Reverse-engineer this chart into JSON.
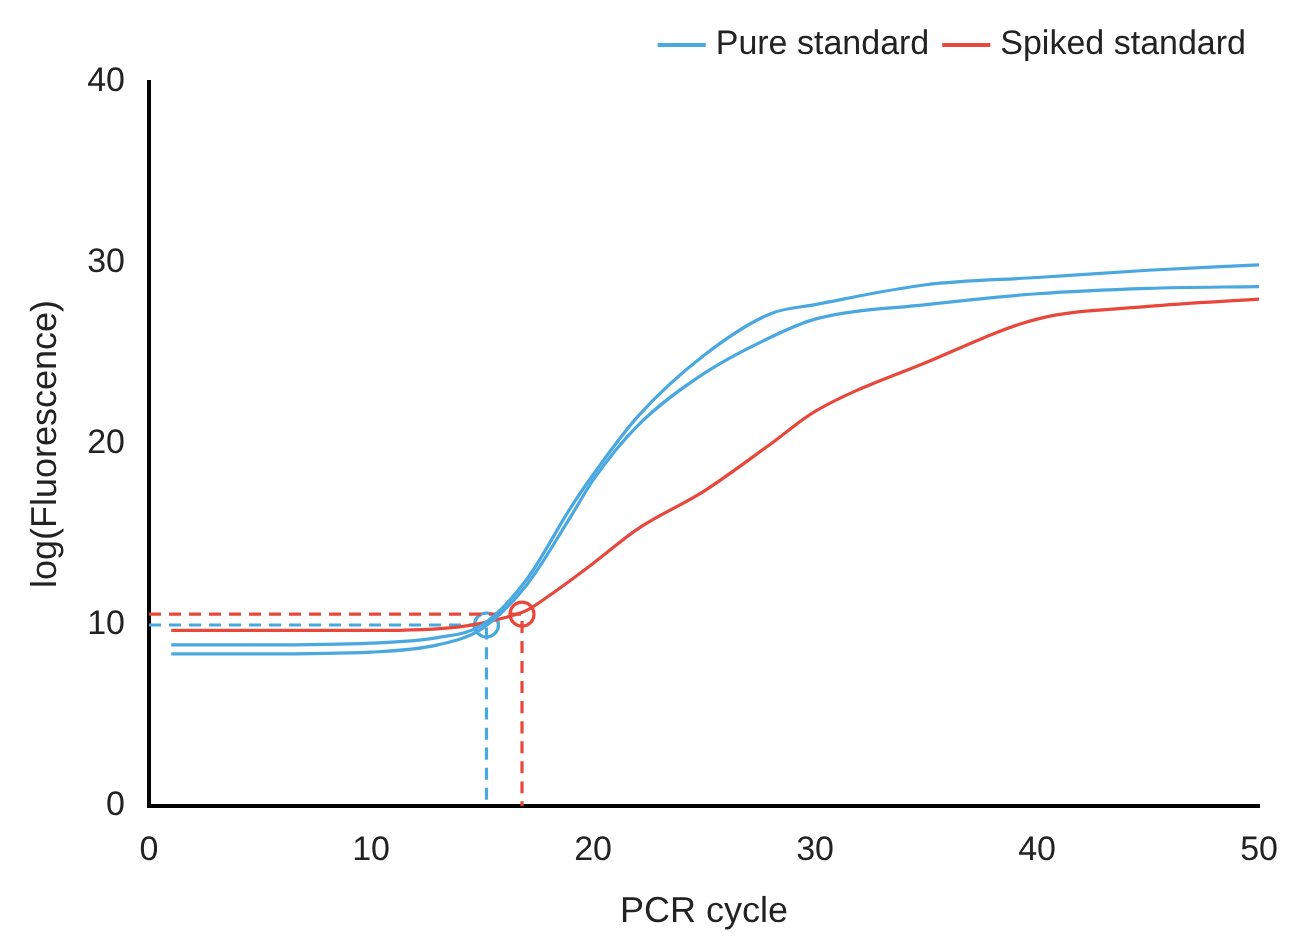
{
  "chart_data": {
    "type": "line",
    "xlabel": "PCR cycle",
    "ylabel": "log(Fluorescence)",
    "xlim": [
      0,
      50
    ],
    "xticks": [
      0,
      10,
      20,
      30,
      40,
      50
    ],
    "ylim": [
      0,
      40
    ],
    "yticks": [
      0,
      10,
      20,
      30,
      40
    ],
    "grid": false,
    "legend": "top right",
    "marker": "none",
    "series": [
      {
        "name": "Pure standard",
        "color": "#4aa8e0",
        "x": [
          1,
          5,
          10,
          13,
          15,
          17,
          19,
          20,
          22,
          25,
          28,
          30,
          35,
          40,
          45,
          50
        ],
        "values": [
          8.9,
          8.9,
          9.0,
          9.3,
          10.0,
          12.5,
          16.5,
          18.3,
          21.5,
          24.9,
          27.2,
          27.7,
          28.8,
          29.2,
          29.6,
          29.9
        ]
      },
      {
        "color": "#4aa8e0",
        "x": [
          1,
          5,
          10,
          13,
          15,
          17,
          19,
          20,
          22,
          25,
          28,
          30,
          35,
          40,
          45,
          50
        ],
        "values": [
          8.4,
          8.4,
          8.5,
          8.9,
          9.8,
          12.2,
          16.0,
          18.0,
          21.0,
          23.9,
          25.9,
          26.9,
          27.7,
          28.3,
          28.6,
          28.7
        ]
      },
      {
        "name": "Spiked standard",
        "color": "#e8483c",
        "x": [
          1,
          5,
          10,
          14,
          16,
          17,
          18,
          20,
          22,
          25,
          28,
          30,
          35,
          40,
          45,
          50
        ],
        "values": [
          9.7,
          9.7,
          9.7,
          9.9,
          10.4,
          10.8,
          11.6,
          13.4,
          15.3,
          17.4,
          20.0,
          21.8,
          24.5,
          26.9,
          27.6,
          28.0
        ]
      },
      {
        "color": "#4aa8e0",
        "line_style": "dashed",
        "x": [
          0,
          15.2,
          15.2
        ],
        "values": [
          10.0,
          10.0,
          0
        ]
      },
      {
        "color": "#e8483c",
        "line_style": "dashed",
        "x": [
          0,
          16.8,
          16.8
        ],
        "values": [
          10.6,
          10.6,
          0
        ]
      },
      {
        "type": "scatter",
        "color": "#4aa8e0",
        "marker": "circle",
        "x": [
          15.2
        ],
        "values": [
          10.0
        ]
      },
      {
        "type": "scatter",
        "color": "#e8483c",
        "marker": "circle",
        "x": [
          16.8
        ],
        "values": [
          10.6
        ]
      }
    ]
  }
}
